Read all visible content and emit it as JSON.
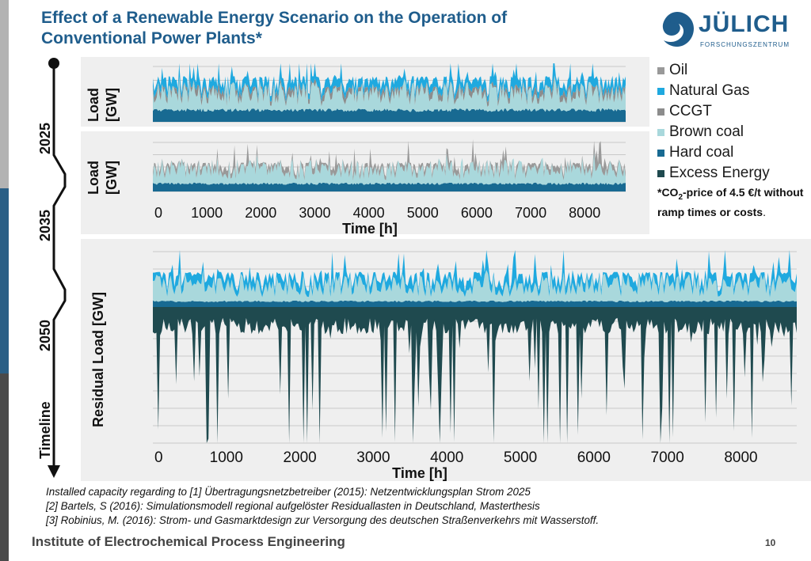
{
  "slide": {
    "title": "Effect of a Renewable Energy Scenario on the Operation of Conventional Power Plants*",
    "logo_text": "JÜLICH",
    "logo_subtext": "FORSCHUNGSZENTRUM",
    "institute": "Institute of Electrochemical Process Engineering",
    "page_number": "10",
    "note_prefix": "*CO",
    "note_subscript": "2",
    "note_suffix": "-price of 4.5 €/t without ramp times or costs",
    "note_end": ".",
    "references": [
      "Installed capacity regarding to [1] Übertragungsnetzbetreiber (2015): Netzentwicklungsplan Strom 2025",
      "[2] Bartels, S (2016): Simulationsmodell regional aufgelöster Residuallasten in Deutschland, Masterthesis",
      "[3] Robinius, M. (2016): Strom- und Gasmarktdesign zur Versorgung des deutschen Straßenverkehrs mit Wasserstoff."
    ],
    "colors": {
      "title": "#1f5d8c",
      "sidebar_gray": "#b3b3b3",
      "sidebar_blue": "#2a5f86",
      "sidebar_dark": "#4a4a4a",
      "panel_bg": "#efefef"
    }
  },
  "timeline": {
    "label": "Timeline",
    "years": [
      "2025",
      "2035",
      "2050"
    ]
  },
  "legend": [
    {
      "label": "Oil",
      "color": "#999999"
    },
    {
      "label": "Natural Gas",
      "color": "#1fa9df"
    },
    {
      "label": "CCGT",
      "color": "#8c8c8c"
    },
    {
      "label": "Brown coal",
      "color": "#a9d8dc"
    },
    {
      "label": "Hard coal",
      "color": "#186a92"
    },
    {
      "label": "Excess Energy",
      "color": "#1f4a4f"
    }
  ],
  "chart_data": [
    {
      "type": "area",
      "panel": "2025",
      "ylabel": "Load [GW]",
      "xlabel": "",
      "xlim": [
        0,
        8760
      ],
      "series": [
        {
          "name": "Hard coal",
          "color": "#186a92",
          "level": 0.2
        },
        {
          "name": "Brown coal",
          "color": "#a9d8dc",
          "level": 0.55
        },
        {
          "name": "CCGT",
          "color": "#8c8c8c",
          "level": 0.6
        },
        {
          "name": "Natural Gas",
          "color": "#1fa9df",
          "level": 0.75
        }
      ]
    },
    {
      "type": "area",
      "panel": "2035",
      "ylabel": "Load [GW]",
      "xlabel": "Time [h]",
      "xlim": [
        0,
        8760
      ],
      "xticks": [
        0,
        1000,
        2000,
        3000,
        4000,
        5000,
        6000,
        7000,
        8000
      ],
      "xtick_labels": [
        "0",
        "1000",
        "2000",
        "3000",
        "4000",
        "5000",
        "6000",
        "7000",
        "8000"
      ],
      "series": [
        {
          "name": "Hard coal",
          "color": "#186a92",
          "level": 0.15
        },
        {
          "name": "Brown coal",
          "color": "#a9d8dc",
          "level": 0.5
        },
        {
          "name": "Oil",
          "color": "#999999",
          "level": 0.55
        }
      ]
    },
    {
      "type": "area",
      "panel": "2050",
      "ylabel": "Residual Load [GW]",
      "xlabel": "Time [h]",
      "xlim": [
        0,
        8760
      ],
      "xticks": [
        0,
        1000,
        2000,
        3000,
        4000,
        5000,
        6000,
        7000,
        8000
      ],
      "xtick_labels": [
        "0",
        "1000",
        "2000",
        "3000",
        "4000",
        "5000",
        "6000",
        "7000",
        "8000"
      ],
      "series": [
        {
          "name": "Hard coal",
          "color": "#186a92",
          "level": 0.1
        },
        {
          "name": "Brown coal",
          "color": "#a9d8dc",
          "level": 0.45
        },
        {
          "name": "Natural Gas",
          "color": "#1fa9df",
          "level": 0.6
        },
        {
          "name": "Excess Energy",
          "color": "#1f4a4f",
          "level": -0.5
        }
      ]
    }
  ]
}
